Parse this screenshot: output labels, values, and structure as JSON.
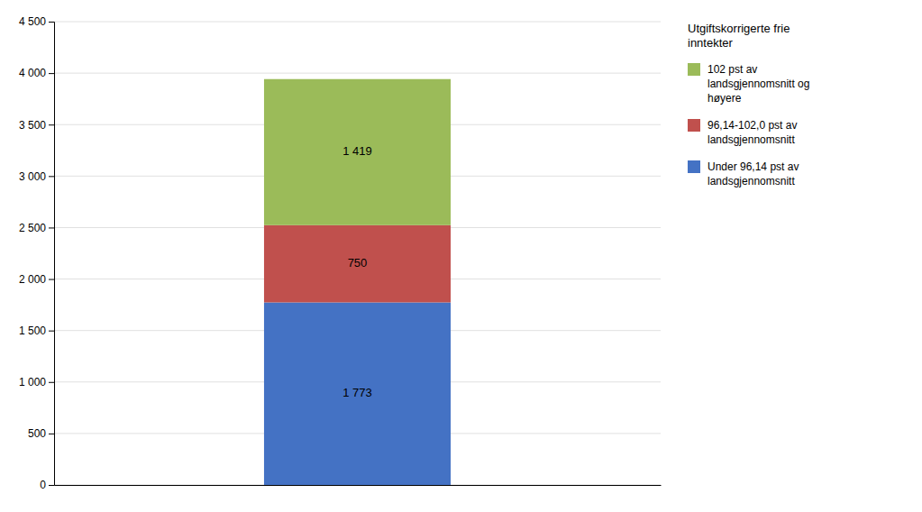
{
  "chart_data": {
    "type": "bar",
    "stacked": true,
    "categories": [
      null
    ],
    "series": [
      {
        "name": "Under 96,14 pst av\nlandsgjennomsnitt",
        "color": "#4472C4",
        "values": [
          1773
        ],
        "value_labels": [
          "1 773"
        ]
      },
      {
        "name": "96,14-102,0 pst av\nlandsgjennomsnitt",
        "color": "#C0504D",
        "values": [
          750
        ],
        "value_labels": [
          "750"
        ]
      },
      {
        "name": "102 pst av\nlandsgjennomsnitt og\nhøyere",
        "color": "#9BBB59",
        "values": [
          1419
        ],
        "value_labels": [
          "1 419"
        ]
      }
    ],
    "legend_title": "Utgiftskorrigerte frie\ninntekter",
    "ylim": [
      0,
      4500
    ],
    "yticks": [
      0,
      500,
      {
        "value": 1000,
        "label": "1 000"
      },
      {
        "value": 1500,
        "label": "1 500"
      },
      {
        "value": 2000,
        "label": "2 000"
      },
      {
        "value": 2500,
        "label": "2 500"
      },
      {
        "value": 3000,
        "label": "3 000"
      },
      {
        "value": 3500,
        "label": "3 500"
      },
      {
        "value": 4000,
        "label": "4 000"
      },
      {
        "value": 4500,
        "label": "4 500"
      }
    ],
    "grid": true,
    "data_labels": true,
    "legend": "right"
  }
}
